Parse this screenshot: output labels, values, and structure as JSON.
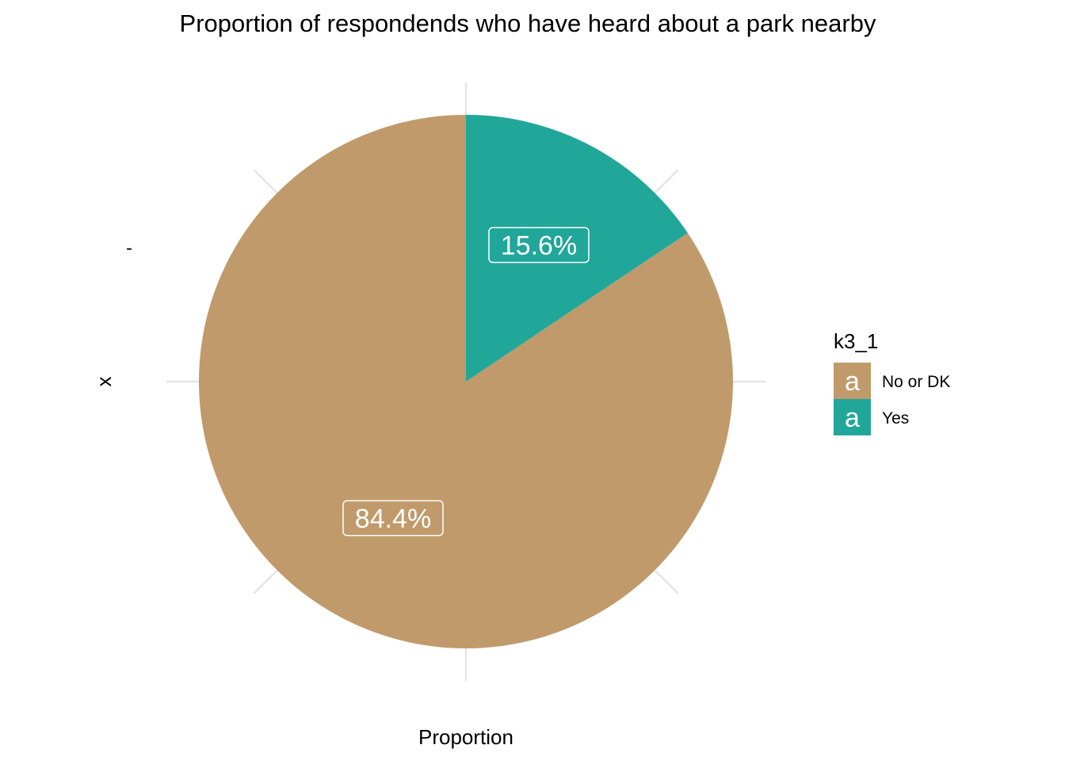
{
  "colors": {
    "No or DK": "#C19A6B",
    "Yes": "#21A69A",
    "grid": "#E5E5E5",
    "label_text": "#FFFFFF",
    "background": "#FFFFFF"
  },
  "chart_data": {
    "type": "pie",
    "title": "Proportion of respondends who have heard about a park nearby",
    "xlabel": "Proportion",
    "ylabel": "x",
    "y_tick_label": "-",
    "categories": [
      "No or DK",
      "Yes"
    ],
    "values": [
      84.4,
      15.6
    ],
    "data_labels": [
      "84.4%",
      "15.6%"
    ],
    "start": "12 o'clock",
    "direction": "counterclockwise",
    "grid": true,
    "legend": {
      "title": "k3_1",
      "placement": "right",
      "key_glyph": "a",
      "entries": [
        "No or DK",
        "Yes"
      ]
    }
  }
}
